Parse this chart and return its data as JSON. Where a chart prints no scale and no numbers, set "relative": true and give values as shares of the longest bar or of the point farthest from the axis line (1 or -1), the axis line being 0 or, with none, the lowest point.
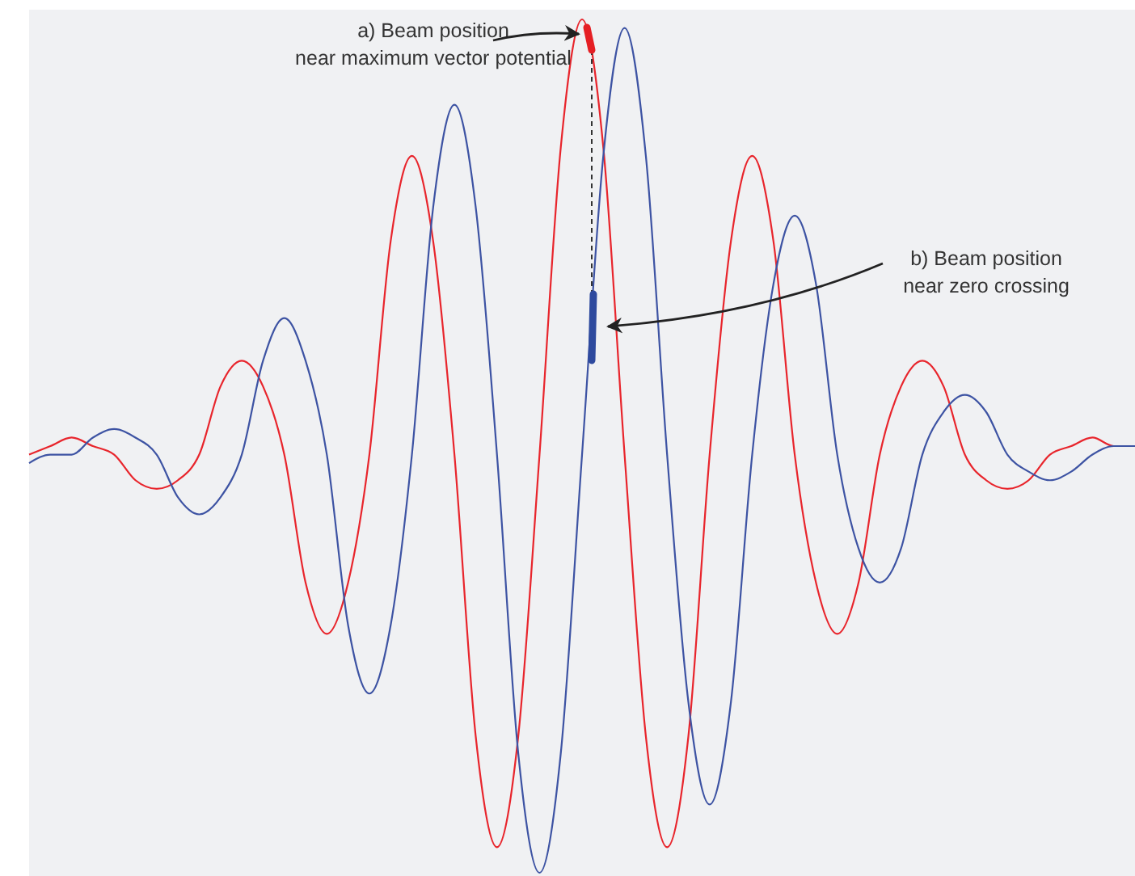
{
  "chart_data": {
    "type": "line",
    "relative": true,
    "categories": [
      null,
      null,
      null,
      null,
      null,
      null,
      null,
      null,
      null,
      null,
      null,
      null,
      null,
      null,
      null,
      null,
      null,
      null,
      null,
      null,
      null,
      null,
      null,
      null,
      null,
      null,
      null,
      null,
      null,
      null,
      null,
      null,
      null,
      null,
      null,
      null,
      null,
      null,
      null,
      null,
      null,
      null,
      null,
      null,
      null,
      null,
      null,
      null,
      null,
      null,
      null,
      null,
      null
    ],
    "annotations": [
      "a) Beam position\nnear maximum vector potential",
      "b) Beam position\nnear zero crossing"
    ],
    "series": [
      {
        "color": "#e8252c",
        "values": [
          0.49,
          0.5,
          0.51,
          0.5,
          0.49,
          0.46,
          0.45,
          0.46,
          0.49,
          0.57,
          0.6,
          0.57,
          0.49,
          0.34,
          0.28,
          0.34,
          0.49,
          0.74,
          0.84,
          0.74,
          0.49,
          0.16,
          0.03,
          0.16,
          0.49,
          0.85,
          1.0,
          0.85,
          0.49,
          0.16,
          0.03,
          0.16,
          0.49,
          0.74,
          0.84,
          0.74,
          0.49,
          0.34,
          0.28,
          0.34,
          0.49,
          0.57,
          0.6,
          0.57,
          0.49,
          0.46,
          0.45,
          0.46,
          0.49,
          0.5,
          0.51,
          0.5,
          0.5
        ]
      },
      {
        "color": "#3d53a3",
        "values": [
          0.48,
          0.49,
          0.49,
          0.51,
          0.52,
          0.51,
          0.49,
          0.44,
          0.42,
          0.44,
          0.49,
          0.6,
          0.65,
          0.6,
          0.49,
          0.29,
          0.21,
          0.29,
          0.49,
          0.78,
          0.9,
          0.78,
          0.49,
          0.14,
          0.0,
          0.14,
          0.49,
          0.84,
          0.99,
          0.84,
          0.49,
          0.2,
          0.08,
          0.2,
          0.49,
          0.69,
          0.77,
          0.69,
          0.49,
          0.38,
          0.34,
          0.38,
          0.49,
          0.54,
          0.56,
          0.54,
          0.49,
          0.47,
          0.46,
          0.47,
          0.49,
          0.5,
          0.5
        ]
      }
    ]
  }
}
